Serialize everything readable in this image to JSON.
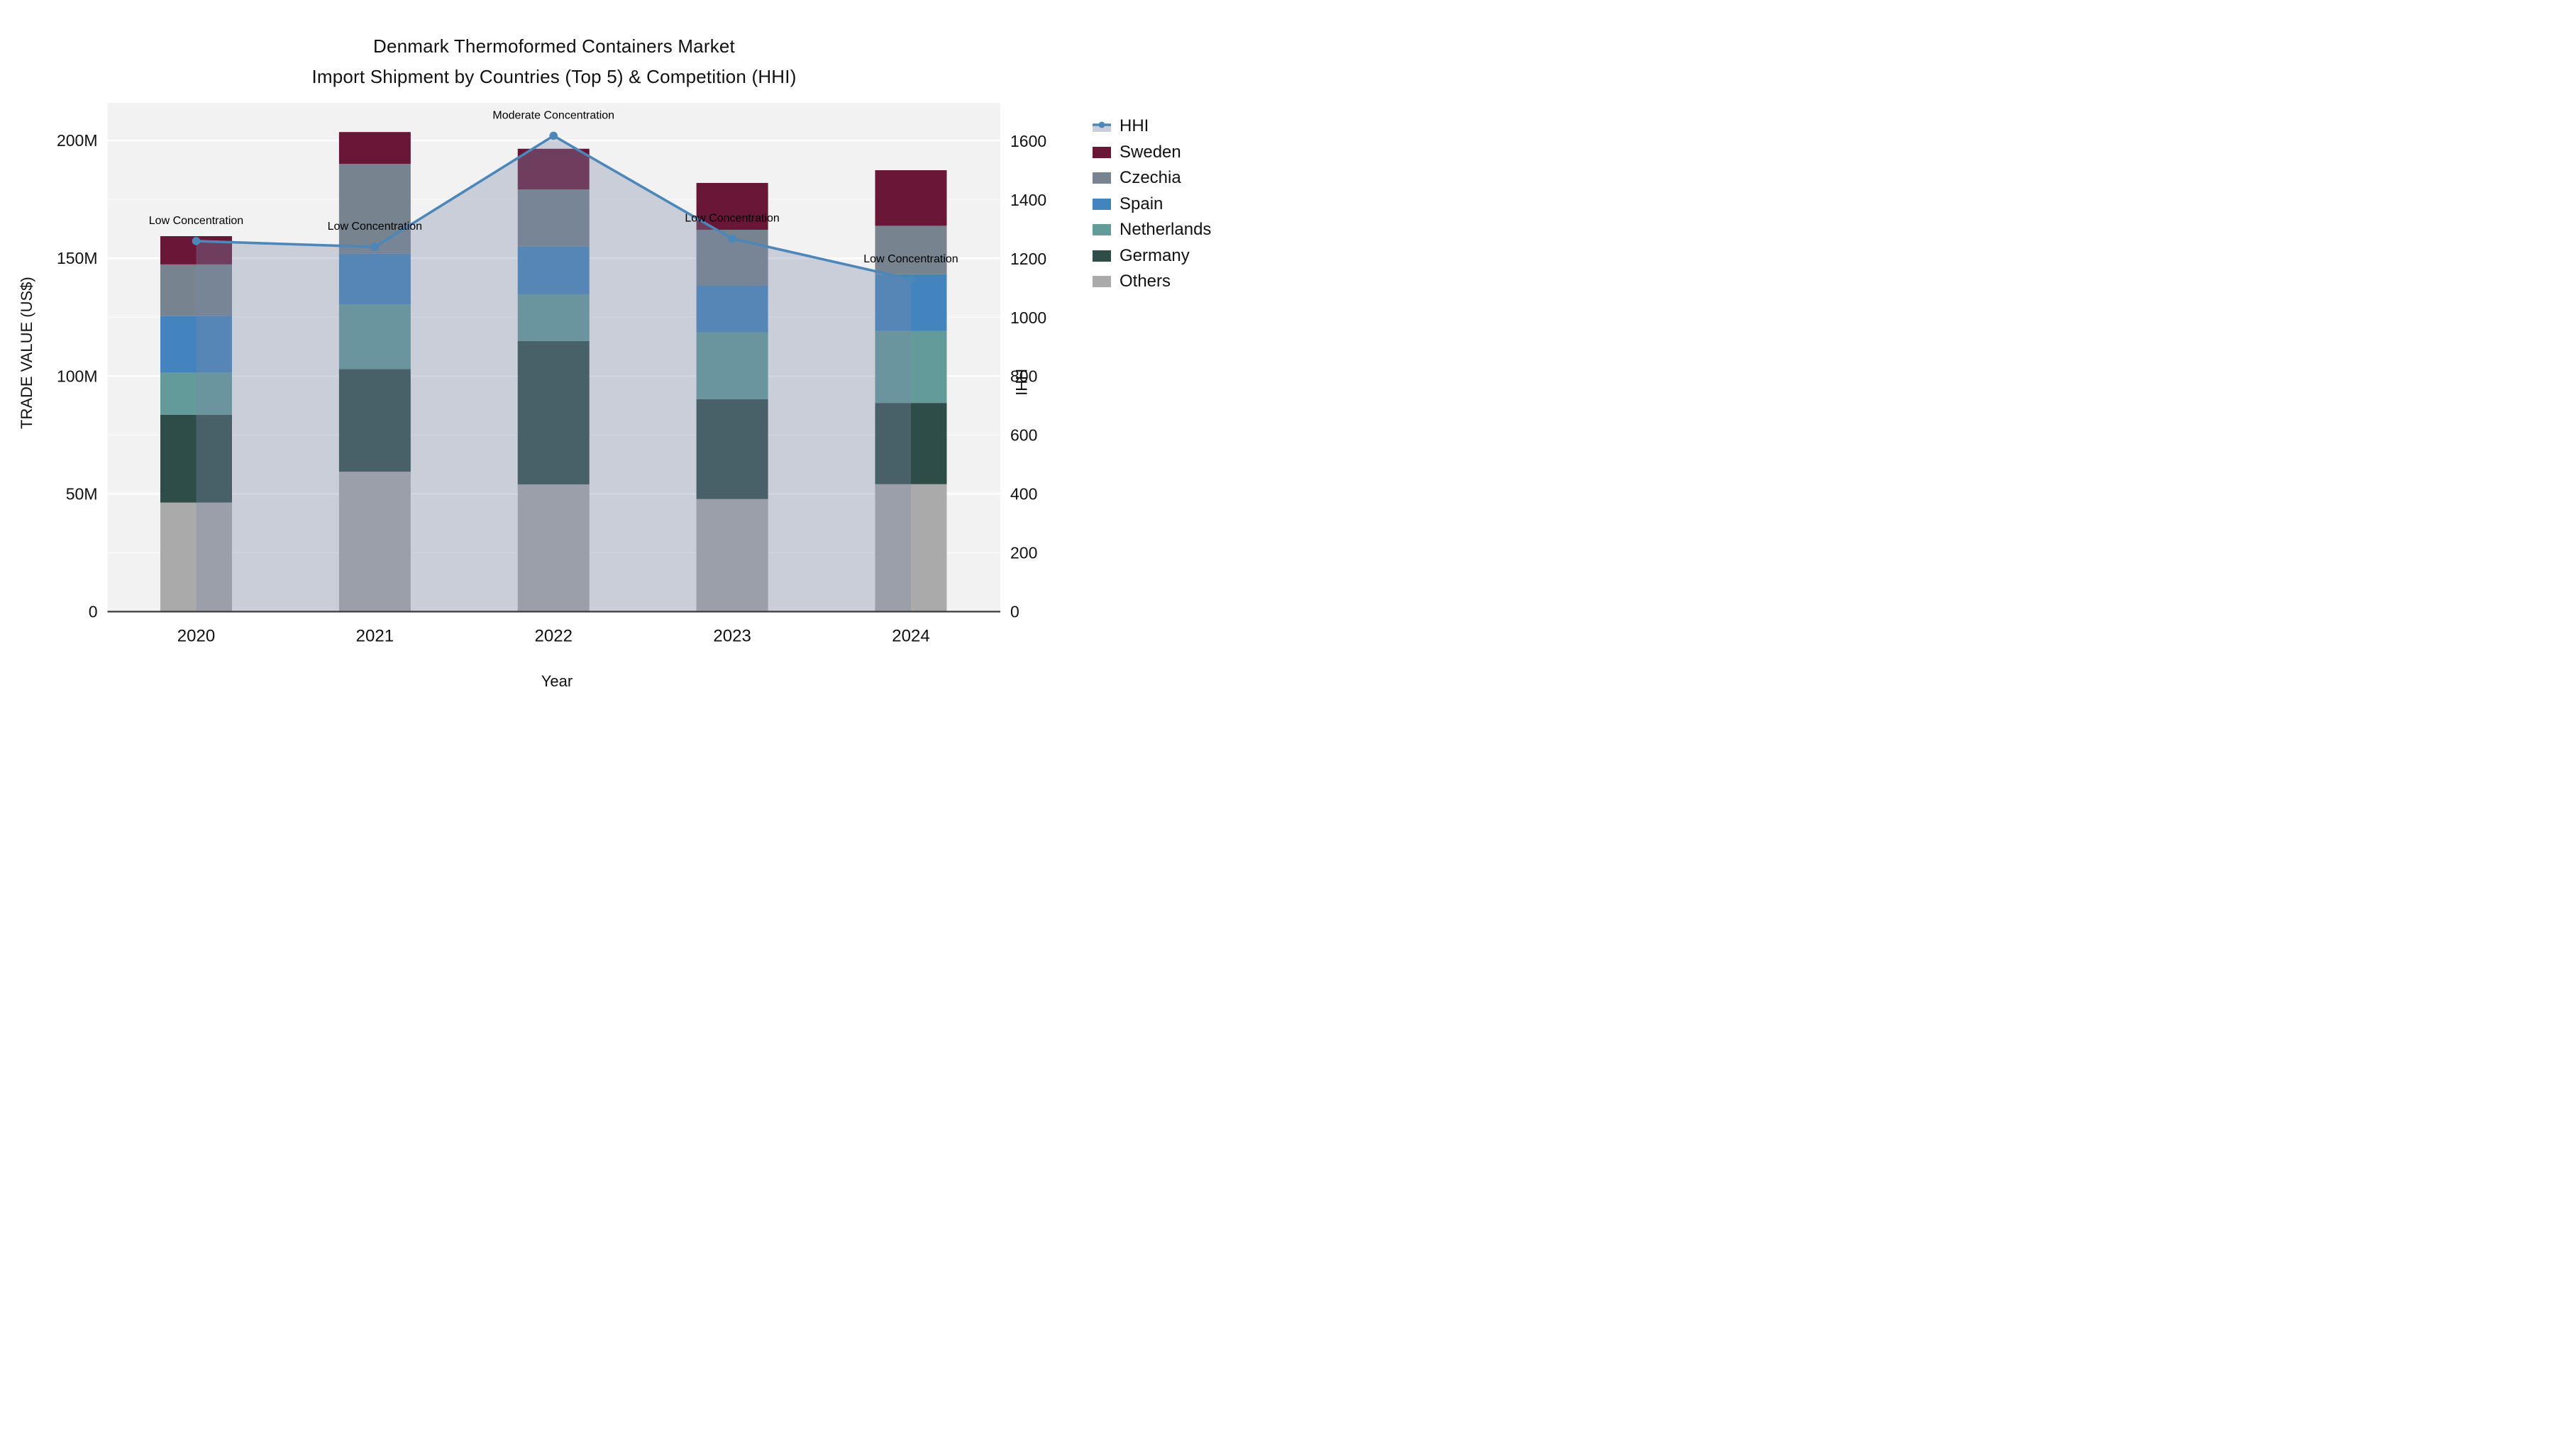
{
  "title": {
    "line1": "Denmark Thermoformed Containers Market",
    "line2": "Import Shipment by Countries (Top 5) & Competition (HHI)"
  },
  "axes": {
    "x_title": "Year",
    "y_left_title": "TRADE VALUE (US$)",
    "y_right_title": "HHI",
    "y_left_ticks": [
      {
        "label": "0",
        "value": 0
      },
      {
        "label": "50M",
        "value": 50
      },
      {
        "label": "100M",
        "value": 100
      },
      {
        "label": "150M",
        "value": 150
      },
      {
        "label": "200M",
        "value": 200
      }
    ],
    "y_right_ticks": [
      {
        "label": "0",
        "value": 0
      },
      {
        "label": "200",
        "value": 200
      },
      {
        "label": "400",
        "value": 400
      },
      {
        "label": "600",
        "value": 600
      },
      {
        "label": "800",
        "value": 800
      },
      {
        "label": "1000",
        "value": 1000
      },
      {
        "label": "1200",
        "value": 1200
      },
      {
        "label": "1400",
        "value": 1400
      },
      {
        "label": "1600",
        "value": 1600
      }
    ]
  },
  "chart_data": {
    "type": "bar+line",
    "title": "Denmark Thermoformed Containers Market — Import Shipment by Countries (Top 5) & Competition (HHI)",
    "xlabel": "Year",
    "ylabel_left": "TRADE VALUE (US$)",
    "ylabel_right": "HHI",
    "y_left_range_millions": [
      0,
      216
    ],
    "y_right_range": [
      0,
      1730
    ],
    "grid": "on",
    "legend_position": "right",
    "categories": [
      "2020",
      "2021",
      "2022",
      "2023",
      "2024"
    ],
    "stack_order_bottom_to_top": [
      "Others",
      "Germany",
      "Netherlands",
      "Spain",
      "Czechia",
      "Sweden"
    ],
    "series": [
      {
        "name": "Sweden",
        "color": "#6A1637",
        "values_millions": [
          12.0,
          13.5,
          17.3,
          19.9,
          23.6
        ]
      },
      {
        "name": "Czechia",
        "color": "#77838F",
        "values_millions": [
          21.8,
          38.2,
          24.3,
          23.6,
          20.6
        ]
      },
      {
        "name": "Spain",
        "color": "#4484BE",
        "values_millions": [
          24.2,
          21.4,
          20.2,
          19.9,
          24.1
        ]
      },
      {
        "name": "Netherlands",
        "color": "#629B99",
        "values_millions": [
          17.8,
          27.5,
          19.8,
          28.4,
          30.5
        ]
      },
      {
        "name": "Germany",
        "color": "#2E4C48",
        "values_millions": [
          37.3,
          43.6,
          60.9,
          42.4,
          34.5
        ]
      },
      {
        "name": "Others",
        "color": "#AAAAAA",
        "values_millions": [
          46.3,
          59.4,
          54.0,
          47.8,
          54.1
        ]
      }
    ],
    "totals_millions": [
      159.4,
      203.6,
      196.5,
      182.0,
      187.4
    ],
    "hhi": {
      "name": "HHI",
      "values": [
        1260,
        1240,
        1618,
        1268,
        1130
      ],
      "line_color": "#4D87B9",
      "fill_color_rgba": "rgba(122,137,166,0.34)",
      "annotations": [
        {
          "year": "2020",
          "label": "Low Concentration"
        },
        {
          "year": "2021",
          "label": "Low Concentration"
        },
        {
          "year": "2022",
          "label": "Moderate Concentration"
        },
        {
          "year": "2023",
          "label": "Low Concentration"
        },
        {
          "year": "2024",
          "label": "Low Concentration"
        }
      ]
    }
  },
  "legend": {
    "items": [
      "HHI",
      "Sweden",
      "Czechia",
      "Spain",
      "Netherlands",
      "Germany",
      "Others"
    ]
  },
  "colors": {
    "plot_background": "#F2F2F2",
    "page_background": "#FFFFFF",
    "gridline": "#FFFFFF",
    "axis_line": "#3A3A3A",
    "text": "#111111"
  }
}
